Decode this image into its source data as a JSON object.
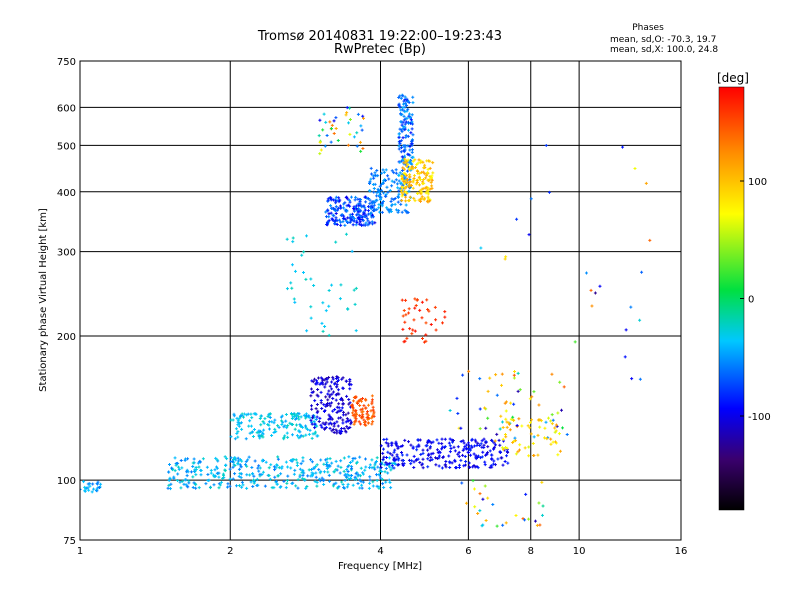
{
  "chart_data": {
    "type": "scatter",
    "title": "Tromsø 20140831 19:22:00–19:23:43",
    "subtitle": "RwPretec (Bp)",
    "info": {
      "heading": "Phases",
      "line1": "mean, sd,O: -70.3, 19.7",
      "line2": "mean, sd,X: 100.0, 24.8"
    },
    "xlabel": "Frequency [MHz]",
    "ylabel": "Stationary phase Virtual Height [km]",
    "xscale": "log",
    "yscale": "log",
    "xlim": [
      1,
      16
    ],
    "ylim": [
      75,
      750
    ],
    "xticks": [
      1,
      2,
      4,
      6,
      8,
      10,
      16
    ],
    "yticks": [
      75,
      100,
      200,
      300,
      400,
      500,
      600,
      750
    ],
    "grid": true,
    "colorbar": {
      "label": "[deg]",
      "range": [
        -180,
        180
      ],
      "ticks": [
        100,
        0,
        -100
      ],
      "colormap": "rainbow (black → purple → blue → cyan → green → yellow → red)"
    },
    "clusters": [
      {
        "desc": "low F trace",
        "x": [
          1.0,
          1.1
        ],
        "y": [
          94,
          100
        ],
        "n": 25,
        "phase": [
          -60,
          -30
        ]
      },
      {
        "desc": "E/F1 main trace",
        "x": [
          1.5,
          4.3
        ],
        "y": [
          96,
          112
        ],
        "n": 420,
        "phase": [
          -60,
          -20
        ]
      },
      {
        "desc": "rising trace",
        "x": [
          4.0,
          7.2
        ],
        "y": [
          106,
          122
        ],
        "n": 260,
        "phase": [
          -110,
          -80
        ]
      },
      {
        "desc": "upper trace",
        "x": [
          2.0,
          3.0
        ],
        "y": [
          122,
          138
        ],
        "n": 160,
        "phase": [
          -50,
          -20
        ]
      },
      {
        "desc": "cusp region",
        "x": [
          2.9,
          3.5
        ],
        "y": [
          125,
          165
        ],
        "n": 180,
        "phase": [
          -120,
          -90
        ]
      },
      {
        "desc": "orange patch",
        "x": [
          3.5,
          3.9
        ],
        "y": [
          130,
          150
        ],
        "n": 80,
        "phase": [
          130,
          160
        ]
      },
      {
        "desc": "F2 lower",
        "x": [
          3.1,
          3.9
        ],
        "y": [
          340,
          390
        ],
        "n": 200,
        "phase": [
          -100,
          -50
        ]
      },
      {
        "desc": "F2 cusp",
        "x": [
          3.8,
          4.6
        ],
        "y": [
          360,
          450
        ],
        "n": 150,
        "phase": [
          -70,
          -40
        ]
      },
      {
        "desc": "F2 high",
        "x": [
          4.35,
          4.65
        ],
        "y": [
          450,
          640
        ],
        "n": 130,
        "phase": [
          -90,
          -40
        ]
      },
      {
        "desc": "X trace",
        "x": [
          4.4,
          5.1
        ],
        "y": [
          380,
          470
        ],
        "n": 150,
        "phase": [
          70,
          120
        ]
      },
      {
        "desc": "sparse F",
        "x": [
          3.0,
          3.7
        ],
        "y": [
          480,
          600
        ],
        "n": 40,
        "phase": [
          -100,
          150
        ]
      },
      {
        "desc": "mid column",
        "x": [
          2.6,
          3.6
        ],
        "y": [
          200,
          330
        ],
        "n": 40,
        "phase": [
          -40,
          -20
        ]
      },
      {
        "desc": "red cluster",
        "x": [
          4.4,
          5.4
        ],
        "y": [
          190,
          240
        ],
        "n": 40,
        "phase": [
          150,
          175
        ]
      },
      {
        "desc": "mid-right scatter",
        "x": [
          5.5,
          9.5
        ],
        "y": [
          120,
          170
        ],
        "n": 60,
        "phase": [
          -120,
          150
        ]
      },
      {
        "desc": "yellow-green arc",
        "x": [
          7.0,
          9.2
        ],
        "y": [
          112,
          135
        ],
        "n": 60,
        "phase": [
          60,
          120
        ]
      },
      {
        "desc": "low right scatter",
        "x": [
          5.8,
          8.6
        ],
        "y": [
          80,
          100
        ],
        "n": 30,
        "phase": [
          -120,
          150
        ]
      },
      {
        "desc": "sparse far",
        "x": [
          6.0,
          14.0
        ],
        "y": [
          160,
          520
        ],
        "n": 25,
        "phase": [
          -130,
          160
        ]
      }
    ]
  }
}
